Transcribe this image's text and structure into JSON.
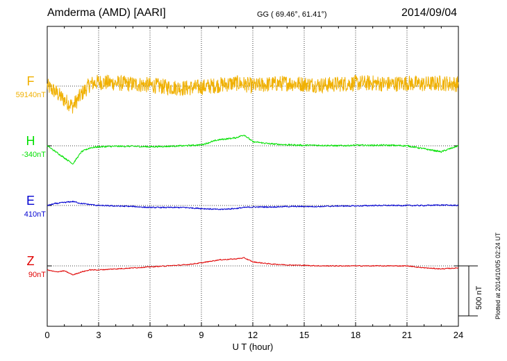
{
  "header": {
    "station": "Amderma (AMD)  [AARI]",
    "coords": "GG ( 69.46°,  61.41°)",
    "date": "2014/09/04"
  },
  "footer": {
    "plotted_note": "Plotted at 2014/10/05 02:24 UT",
    "scale_label": "500 nT"
  },
  "chart_data": {
    "type": "line",
    "title": "Amderma (AMD)  [AARI]",
    "xlabel": "U T (hour)",
    "ylabel": "",
    "xlim": [
      0,
      24
    ],
    "x_ticks": [
      "0",
      "3",
      "6",
      "9",
      "12",
      "15",
      "18",
      "21",
      "24"
    ],
    "scale_nT": 500,
    "grid": true,
    "series": [
      {
        "name": "F",
        "baseline_label": "59140nT",
        "color": "#f0b000",
        "x": [
          0,
          0.5,
          1,
          1.5,
          2,
          2.5,
          3,
          4,
          5,
          6,
          7,
          8,
          9,
          10,
          11,
          11.5,
          12,
          13,
          14,
          15,
          16,
          17,
          18,
          19,
          20,
          21,
          22,
          23,
          24
        ],
        "values": [
          0,
          -60,
          -140,
          -200,
          -80,
          20,
          40,
          30,
          20,
          10,
          -10,
          -20,
          -10,
          10,
          30,
          20,
          0,
          20,
          30,
          20,
          10,
          20,
          30,
          30,
          20,
          30,
          20,
          30,
          20
        ],
        "noise_nT": 80
      },
      {
        "name": "H",
        "baseline_label": "-340nT",
        "color": "#00e000",
        "x": [
          0,
          0.5,
          1,
          1.5,
          2,
          2.5,
          3,
          4,
          5,
          6,
          7,
          8,
          9,
          10,
          11,
          11.5,
          12,
          13,
          14,
          15,
          16,
          17,
          18,
          19,
          20,
          21,
          22,
          23,
          24
        ],
        "values": [
          0,
          -60,
          -120,
          -180,
          -60,
          -20,
          -10,
          -5,
          -5,
          -10,
          -5,
          0,
          10,
          60,
          80,
          110,
          40,
          20,
          10,
          5,
          5,
          0,
          5,
          5,
          5,
          0,
          -30,
          -60,
          0
        ],
        "noise_nT": 10
      },
      {
        "name": "E",
        "baseline_label": "410nT",
        "color": "#0000d0",
        "x": [
          0,
          0.5,
          1,
          1.5,
          2,
          2.5,
          3,
          4,
          5,
          6,
          7,
          8,
          9,
          10,
          11,
          11.5,
          12,
          13,
          14,
          15,
          16,
          17,
          18,
          19,
          20,
          21,
          22,
          23,
          24
        ],
        "values": [
          0,
          20,
          30,
          40,
          20,
          10,
          0,
          -5,
          -10,
          -20,
          -20,
          -20,
          -30,
          -40,
          -30,
          -20,
          -15,
          -15,
          -10,
          -10,
          -10,
          -5,
          -5,
          0,
          0,
          0,
          0,
          5,
          0
        ],
        "noise_nT": 8
      },
      {
        "name": "Z",
        "baseline_label": "90nT",
        "color": "#e00000",
        "x": [
          0,
          0.5,
          1,
          1.5,
          2,
          2.5,
          3,
          4,
          5,
          6,
          7,
          8,
          9,
          10,
          11,
          11.5,
          12,
          13,
          14,
          15,
          16,
          17,
          18,
          19,
          20,
          21,
          22,
          23,
          24
        ],
        "values": [
          -40,
          -60,
          -50,
          -90,
          -60,
          -40,
          -40,
          -30,
          -20,
          -10,
          0,
          10,
          30,
          60,
          70,
          80,
          40,
          20,
          10,
          5,
          0,
          0,
          0,
          0,
          0,
          0,
          -20,
          -30,
          -20
        ],
        "noise_nT": 6
      }
    ]
  }
}
